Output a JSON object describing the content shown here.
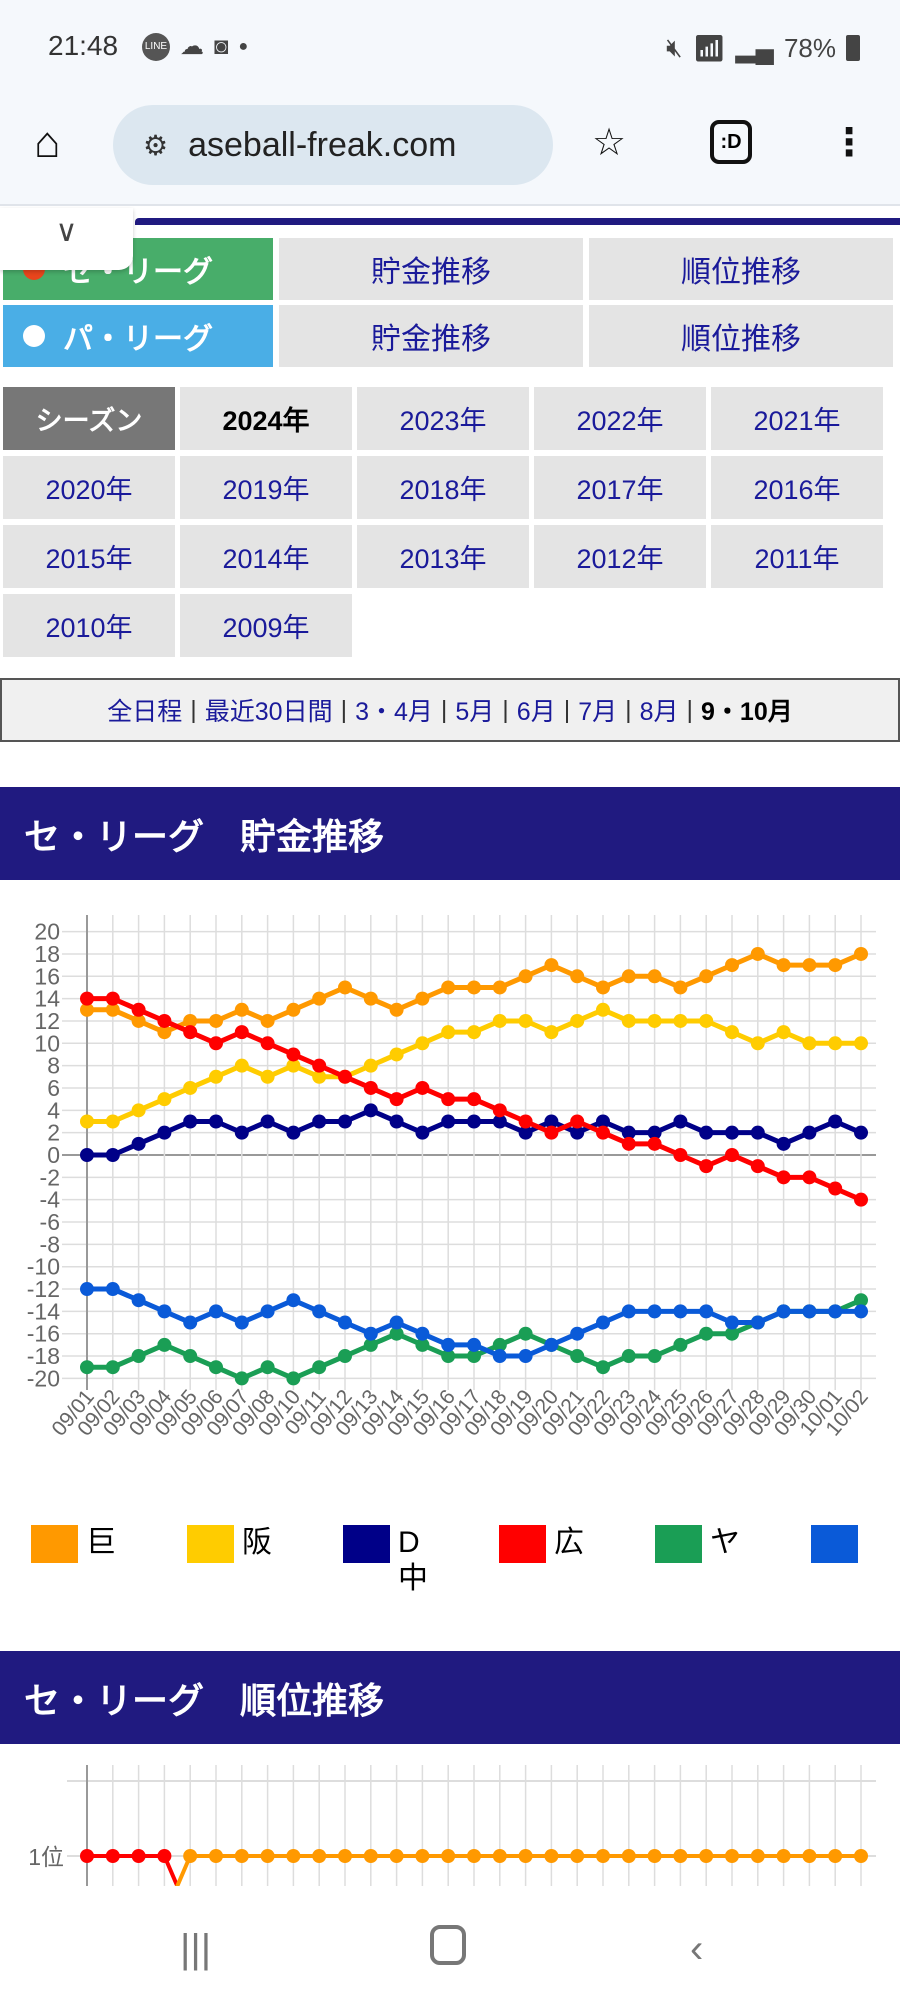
{
  "status_bar": {
    "time": "21:48",
    "battery": "78%",
    "left_icons": [
      "line-icon",
      "cloud-icon",
      "clock-app-icon",
      "dot-icon"
    ],
    "right_icons": [
      "mute-icon",
      "wifi-icon",
      "signal-icon",
      "battery-icon"
    ]
  },
  "browser": {
    "url": "aseball-freak.com",
    "icons": [
      "home-icon",
      "site-settings-icon",
      "star-icon",
      "tab-switcher-icon",
      "menu-icon"
    ],
    "tab_count": ":D"
  },
  "league_nav": [
    {
      "league": "セ・リーグ",
      "color": "#48ad6a",
      "links": [
        "貯金推移",
        "順位推移"
      ]
    },
    {
      "league": "パ・リーグ",
      "color": "#4aaee6",
      "links": [
        "貯金推移",
        "順位推移"
      ]
    }
  ],
  "season": {
    "label": "シーズン",
    "selected": "2024年",
    "years": [
      "2024年",
      "2023年",
      "2022年",
      "2021年",
      "2020年",
      "2019年",
      "2018年",
      "2017年",
      "2016年",
      "2015年",
      "2014年",
      "2013年",
      "2012年",
      "2011年",
      "2010年",
      "2009年"
    ]
  },
  "period_filter": {
    "items": [
      "全日程",
      "最近30日間",
      "3・4月",
      "5月",
      "6月",
      "7月",
      "8月",
      "9・10月"
    ],
    "selected": "9・10月"
  },
  "sections": {
    "savings_title": "セ・リーグ　貯金推移",
    "rank_title": "セ・リーグ　順位推移"
  },
  "chart_data": [
    {
      "type": "line",
      "ylim": [
        -20,
        20
      ],
      "yticks": [
        20,
        18,
        16,
        14,
        12,
        10,
        8,
        6,
        4,
        2,
        0,
        -2,
        -4,
        -6,
        -8,
        -10,
        -12,
        -14,
        -16,
        -18,
        -20
      ],
      "grid": true,
      "legend_placement": "bottom",
      "x": [
        "09/01",
        "09/02",
        "09/03",
        "09/04",
        "09/05",
        "09/06",
        "09/07",
        "09/08",
        "09/10",
        "09/11",
        "09/12",
        "09/13",
        "09/14",
        "09/15",
        "09/16",
        "09/17",
        "09/18",
        "09/19",
        "09/20",
        "09/21",
        "09/22",
        "09/23",
        "09/24",
        "09/25",
        "09/26",
        "09/27",
        "09/28",
        "09/29",
        "09/30",
        "10/01",
        "10/02"
      ],
      "series": [
        {
          "name": "巨",
          "color": "#ff9900",
          "values": [
            13,
            13,
            12,
            11,
            12,
            12,
            13,
            12,
            13,
            14,
            15,
            14,
            13,
            14,
            15,
            15,
            15,
            16,
            17,
            16,
            15,
            16,
            16,
            15,
            16,
            17,
            18,
            17,
            17,
            17,
            18
          ]
        },
        {
          "name": "阪",
          "color": "#ffcc00",
          "values": [
            3,
            3,
            4,
            5,
            6,
            7,
            8,
            7,
            8,
            7,
            7,
            8,
            9,
            10,
            11,
            11,
            12,
            12,
            11,
            12,
            13,
            12,
            12,
            12,
            12,
            11,
            10,
            11,
            10,
            10,
            10
          ]
        },
        {
          "name": "D中",
          "color": "#000088",
          "values": [
            0,
            0,
            1,
            2,
            3,
            3,
            2,
            3,
            2,
            3,
            3,
            4,
            3,
            2,
            3,
            3,
            3,
            2,
            3,
            2,
            3,
            2,
            2,
            3,
            2,
            2,
            2,
            1,
            2,
            3,
            2
          ]
        },
        {
          "name": "広",
          "color": "#ff0000",
          "values": [
            14,
            14,
            13,
            12,
            11,
            10,
            11,
            10,
            9,
            8,
            7,
            6,
            5,
            6,
            5,
            5,
            4,
            3,
            2,
            3,
            2,
            1,
            1,
            0,
            -1,
            0,
            -1,
            -2,
            -2,
            -3,
            -4
          ]
        },
        {
          "name": "ヤ",
          "color": "#1a9e55",
          "values": [
            -19,
            -19,
            -18,
            -17,
            -18,
            -19,
            -20,
            -19,
            -20,
            -19,
            -18,
            -17,
            -16,
            -17,
            -18,
            -18,
            -17,
            -16,
            -17,
            -18,
            -19,
            -18,
            -18,
            -17,
            -16,
            -16,
            -15,
            -14,
            -14,
            -14,
            -13
          ]
        },
        {
          "name": "",
          "color": "#0a5ad8",
          "values": [
            -12,
            -12,
            -13,
            -14,
            -15,
            -14,
            -15,
            -14,
            -13,
            -14,
            -15,
            -16,
            -15,
            -16,
            -17,
            -17,
            -18,
            -18,
            -17,
            -16,
            -15,
            -14,
            -14,
            -14,
            -14,
            -15,
            -15,
            -14,
            -14,
            -14,
            -14
          ]
        }
      ]
    },
    {
      "type": "line",
      "ytick_label": "1位",
      "series": [
        {
          "name": "広",
          "color": "#ff0000",
          "values": [
            1,
            1,
            1,
            1,
            2
          ]
        },
        {
          "name": "巨",
          "color": "#ff9900",
          "values": [
            2,
            2,
            2,
            2,
            1,
            1,
            1,
            1,
            1,
            1,
            1,
            1,
            1,
            1,
            1,
            1,
            1,
            1,
            1,
            1,
            1,
            1,
            1,
            1,
            1,
            1,
            1,
            1,
            1,
            1,
            1
          ]
        }
      ]
    }
  ]
}
